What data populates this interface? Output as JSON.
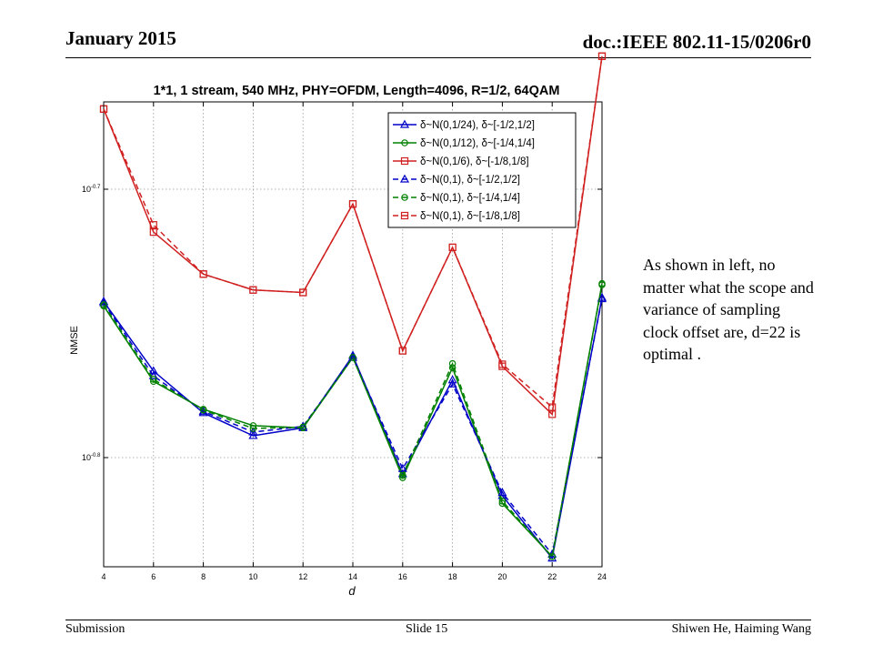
{
  "header": {
    "date": "January 2015",
    "doc": "doc.:IEEE 802.11-15/0206r0"
  },
  "footer": {
    "left": "Submission",
    "center": "Slide 15",
    "right": "Shiwen He, Haiming Wang"
  },
  "note": "As shown in left, no matter what the scope and variance of sampling clock offset are, d=22 is optimal .",
  "chart_data": {
    "type": "line",
    "title": "1*1, 1 stream, 540 MHz, PHY=OFDM, Length=4096, R=1/2, 64QAM",
    "xlabel": "d",
    "ylabel": "NMSE",
    "yscale": "log",
    "xlim": [
      4,
      24
    ],
    "x_ticks": [
      "4",
      "6",
      "8",
      "10",
      "12",
      "14",
      "16",
      "18",
      "20",
      "22",
      "24"
    ],
    "y_ticks": [
      {
        "value": 0.1995,
        "base": "10",
        "exp": "-0.7"
      },
      {
        "value": 0.1585,
        "base": "10",
        "exp": "-0.8"
      }
    ],
    "grid": true,
    "legend_position": "top-right",
    "x": [
      4,
      6,
      8,
      10,
      12,
      14,
      16,
      18,
      20,
      22,
      24
    ],
    "series": [
      {
        "name": "δ~N(0,1/24),  δ~[-1/2,1/2]",
        "color": "#0000c8",
        "marker": "triangle",
        "dash": false,
        "values": [
          0.1812,
          0.1707,
          0.1647,
          0.1615,
          0.1626,
          0.173,
          0.1563,
          0.1694,
          0.1534,
          0.1454,
          0.1818
        ]
      },
      {
        "name": "δ~N(0,1/12),  δ~[-1/4,1/4]",
        "color": "#008000",
        "marker": "circle",
        "dash": false,
        "values": [
          0.1805,
          0.1692,
          0.1652,
          0.1629,
          0.1626,
          0.1727,
          0.1558,
          0.1712,
          0.1524,
          0.1456,
          0.184
        ]
      },
      {
        "name": "δ~N(0,1/6),  δ~[-1/8,1/8]",
        "color": "#d02020",
        "marker": "square",
        "dash": false,
        "values": [
          0.2137,
          0.1923,
          0.1855,
          0.183,
          0.1826,
          0.197,
          0.1737,
          0.1898,
          0.1714,
          0.1645,
          0.2236
        ]
      },
      {
        "name": "δ~N(0,1),  δ~[-1/2,1/2]",
        "color": "#0000c8",
        "marker": "triangle",
        "dash": true,
        "values": [
          0.181,
          0.17,
          0.1649,
          0.162,
          0.1628,
          0.1727,
          0.157,
          0.1688,
          0.1538,
          0.1459,
          0.1816
        ]
      },
      {
        "name": "δ~N(0,1),  δ~[-1/4,1/4]",
        "color": "#008000",
        "marker": "circle",
        "dash": true,
        "values": [
          0.1807,
          0.1695,
          0.1651,
          0.1625,
          0.1627,
          0.1727,
          0.1561,
          0.1718,
          0.1527,
          0.1456,
          0.1838
        ]
      },
      {
        "name": "δ~N(0,1),  δ~[-1/8,1/8]",
        "color": "#d02020",
        "marker": "square",
        "dash": true,
        "values": [
          0.2137,
          0.1935,
          0.1855,
          0.183,
          0.1826,
          0.197,
          0.1737,
          0.1898,
          0.1717,
          0.1655,
          0.2236
        ]
      }
    ]
  }
}
